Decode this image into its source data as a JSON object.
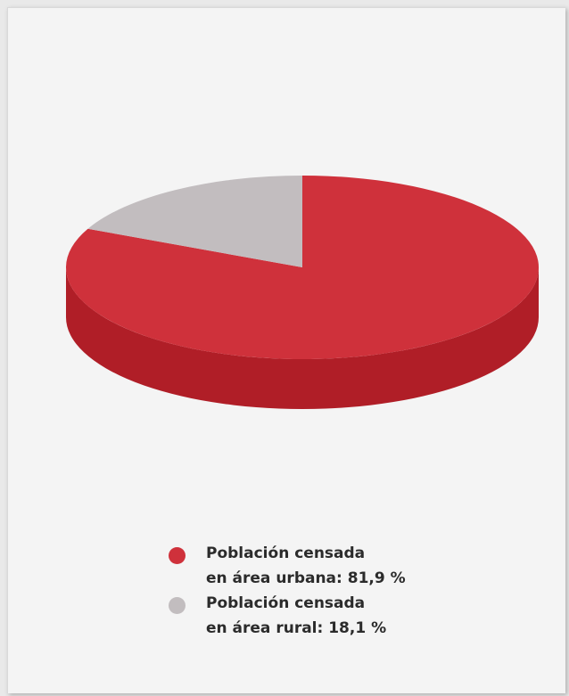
{
  "chart_data": {
    "type": "pie",
    "title": "",
    "series": [
      {
        "label_line1": "Población censada",
        "label_line2": "en área urbana: 81,9 %",
        "value": 81.9,
        "color": "#cf313b",
        "side_color": "#b01e27"
      },
      {
        "label_line1": "Población censada",
        "label_line2": "en área rural: 18,1 %",
        "value": 18.1,
        "color": "#c2bdbf",
        "side_color": "#a8a3a5"
      }
    ]
  },
  "colors": {
    "background": "#f4f4f4",
    "urban": "#cf313b",
    "rural": "#c2bdbf"
  }
}
